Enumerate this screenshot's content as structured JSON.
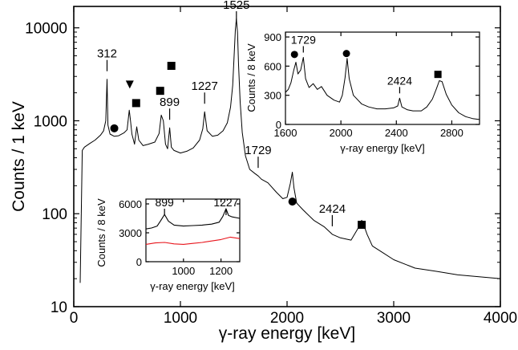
{
  "chart_data": [
    {
      "type": "line",
      "panel": "main",
      "xlabel": "γ-ray energy [keV]",
      "ylabel": "Counts / 1 keV",
      "xlim": [
        0,
        4000
      ],
      "ylim": [
        10,
        17000
      ],
      "yscale": "log",
      "x_ticks": [
        "0",
        "1000",
        "2000",
        "3000",
        "4000"
      ],
      "y_ticks": [
        "10",
        "100",
        "1000",
        "10000"
      ],
      "series": [
        {
          "color": "#000000",
          "x": [
            60,
            80,
            100,
            150,
            200,
            250,
            280,
            300,
            312,
            320,
            340,
            380,
            420,
            470,
            500,
            520,
            530,
            545,
            570,
            590,
            610,
            650,
            700,
            760,
            800,
            820,
            840,
            860,
            880,
            899,
            915,
            940,
            1000,
            1060,
            1120,
            1180,
            1210,
            1227,
            1250,
            1300,
            1350,
            1400,
            1440,
            1470,
            1490,
            1505,
            1515,
            1525,
            1535,
            1545,
            1560,
            1580,
            1610,
            1650,
            1700,
            1729,
            1760,
            1820,
            1900,
            1960,
            2000,
            2030,
            2050,
            2065,
            2090,
            2150,
            2250,
            2350,
            2424,
            2500,
            2600,
            2660,
            2700,
            2720,
            2750,
            2800,
            2900,
            3000,
            3200,
            3400,
            3600,
            3800,
            4000
          ],
          "y": [
            18,
            480,
            520,
            570,
            620,
            700,
            780,
            1000,
            2800,
            900,
            720,
            680,
            690,
            740,
            800,
            1300,
            1050,
            720,
            560,
            860,
            620,
            540,
            560,
            590,
            730,
            1150,
            1000,
            560,
            500,
            840,
            520,
            480,
            450,
            470,
            510,
            620,
            820,
            1250,
            780,
            680,
            700,
            780,
            950,
            1400,
            2400,
            5500,
            9500,
            12500,
            9000,
            4000,
            1600,
            750,
            420,
            300,
            270,
            255,
            235,
            215,
            170,
            145,
            150,
            210,
            280,
            190,
            130,
            110,
            85,
            72,
            60,
            55,
            52,
            68,
            85,
            75,
            60,
            45,
            38,
            32,
            26,
            24,
            22,
            21,
            20
          ]
        }
      ],
      "annotations": [
        {
          "label": "312",
          "x": 312
        },
        {
          "label": "899",
          "x": 899
        },
        {
          "label": "1227",
          "x": 1227
        },
        {
          "label": "1525",
          "x": 1525
        },
        {
          "label": "1729",
          "x": 1729
        },
        {
          "label": "2424",
          "x": 2424
        }
      ],
      "markers": [
        {
          "shape": "circle",
          "x": 380,
          "y": 830
        },
        {
          "shape": "triangle-down",
          "x": 525,
          "y": 2450
        },
        {
          "shape": "square",
          "x": 585,
          "y": 1550
        },
        {
          "shape": "square",
          "x": 810,
          "y": 2100
        },
        {
          "shape": "square",
          "x": 915,
          "y": 3900
        },
        {
          "shape": "circle",
          "x": 2050,
          "y": 135
        },
        {
          "shape": "square",
          "x": 2700,
          "y": 76
        }
      ]
    },
    {
      "type": "line",
      "panel": "inset-top",
      "xlabel": "γ-ray energy [keV]",
      "ylabel": "Counts / 8 keV",
      "xlim": [
        1600,
        3000
      ],
      "ylim": [
        0,
        950
      ],
      "x_ticks": [
        "1600",
        "2000",
        "2400",
        "2800"
      ],
      "y_ticks": [
        "0",
        "300",
        "600",
        "900"
      ],
      "series": [
        {
          "color": "#000000",
          "x": [
            1600,
            1620,
            1640,
            1660,
            1675,
            1690,
            1710,
            1729,
            1745,
            1770,
            1800,
            1830,
            1860,
            1900,
            1950,
            1990,
            2010,
            2030,
            2045,
            2060,
            2090,
            2150,
            2200,
            2260,
            2320,
            2380,
            2410,
            2424,
            2440,
            2480,
            2520,
            2580,
            2620,
            2660,
            2690,
            2710,
            2730,
            2760,
            2800,
            2850,
            2900,
            2950,
            3000
          ],
          "y": [
            330,
            360,
            430,
            560,
            640,
            520,
            560,
            690,
            470,
            380,
            420,
            360,
            390,
            300,
            250,
            230,
            300,
            480,
            680,
            470,
            300,
            210,
            180,
            160,
            160,
            170,
            190,
            270,
            180,
            150,
            140,
            140,
            180,
            260,
            370,
            450,
            440,
            310,
            200,
            120,
            80,
            60,
            50
          ]
        }
      ],
      "annotations": [
        {
          "label": "1729",
          "x": 1729
        },
        {
          "label": "2424",
          "x": 2424
        }
      ],
      "markers": [
        {
          "shape": "circle",
          "x": 1665,
          "y": 720
        },
        {
          "shape": "circle",
          "x": 2040,
          "y": 730
        },
        {
          "shape": "square",
          "x": 2700,
          "y": 515
        }
      ]
    },
    {
      "type": "line",
      "panel": "inset-bottom",
      "xlabel": "γ-ray energy [keV]",
      "ylabel": "Counts / 8 keV",
      "xlim": [
        800,
        1300
      ],
      "ylim": [
        0,
        6500
      ],
      "x_ticks": [
        "1000",
        "1200"
      ],
      "y_ticks": [
        "0",
        "3000",
        "6000"
      ],
      "series": [
        {
          "color": "#000000",
          "x": [
            800,
            830,
            860,
            880,
            899,
            920,
            950,
            1000,
            1050,
            1100,
            1150,
            1190,
            1210,
            1227,
            1240,
            1260,
            1300
          ],
          "y": [
            3400,
            3500,
            3700,
            4300,
            4900,
            4200,
            3800,
            3700,
            3750,
            3800,
            3900,
            4100,
            4700,
            5500,
            4800,
            4650,
            4500
          ]
        },
        {
          "color": "#e8141b",
          "x": [
            800,
            850,
            900,
            950,
            1000,
            1050,
            1100,
            1150,
            1200,
            1250,
            1300
          ],
          "y": [
            1800,
            1950,
            2000,
            1850,
            1800,
            1900,
            2000,
            2150,
            2300,
            2550,
            2400
          ]
        }
      ],
      "annotations": [
        {
          "label": "899",
          "x": 899
        },
        {
          "label": "1227",
          "x": 1227
        }
      ]
    }
  ]
}
